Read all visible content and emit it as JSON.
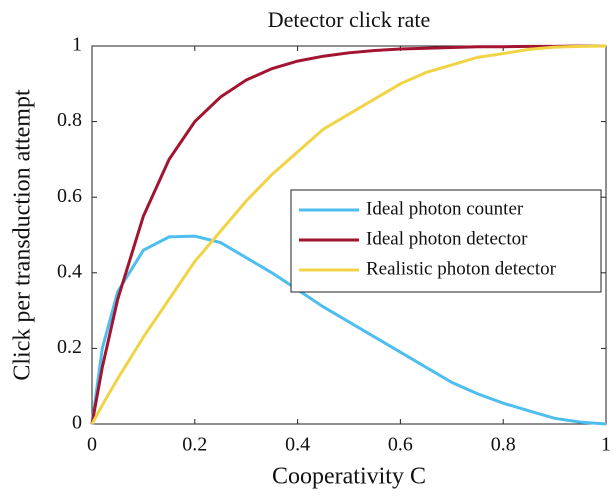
{
  "chart_data": {
    "type": "line",
    "title": "Detector click rate",
    "xlabel": "Cooperativity C",
    "ylabel": "Click per transduction attempt",
    "x": [
      0,
      0.02,
      0.05,
      0.1,
      0.15,
      0.2,
      0.25,
      0.3,
      0.35,
      0.4,
      0.45,
      0.5,
      0.55,
      0.6,
      0.65,
      0.7,
      0.75,
      0.8,
      0.85,
      0.9,
      0.95,
      1
    ],
    "series": [
      {
        "name": "Ideal photon counter",
        "color": "#4DBEEE",
        "values": [
          0,
          0.2,
          0.35,
          0.46,
          0.495,
          0.497,
          0.48,
          0.44,
          0.4,
          0.355,
          0.31,
          0.27,
          0.23,
          0.19,
          0.15,
          0.11,
          0.08,
          0.055,
          0.035,
          0.015,
          0.005,
          0
        ]
      },
      {
        "name": "Ideal photon detector",
        "color": "#A2142F",
        "values": [
          0,
          0.15,
          0.33,
          0.55,
          0.7,
          0.8,
          0.865,
          0.91,
          0.94,
          0.96,
          0.973,
          0.982,
          0.988,
          0.992,
          0.994,
          0.996,
          0.998,
          0.998,
          0.999,
          0.999,
          1,
          1
        ]
      },
      {
        "name": "Realistic photon detector",
        "color": "#F0D446",
        "values": [
          0,
          0.05,
          0.12,
          0.23,
          0.33,
          0.43,
          0.51,
          0.59,
          0.66,
          0.72,
          0.78,
          0.82,
          0.86,
          0.9,
          0.93,
          0.95,
          0.97,
          0.98,
          0.991,
          0.997,
          0.999,
          1
        ]
      }
    ],
    "xlim": [
      0,
      1
    ],
    "ylim": [
      0,
      1
    ],
    "xticks": [
      0,
      0.2,
      0.4,
      0.6,
      0.8,
      1
    ],
    "yticks": [
      0,
      0.2,
      0.4,
      0.6,
      0.8,
      1
    ],
    "legend": "right",
    "grid": false
  }
}
